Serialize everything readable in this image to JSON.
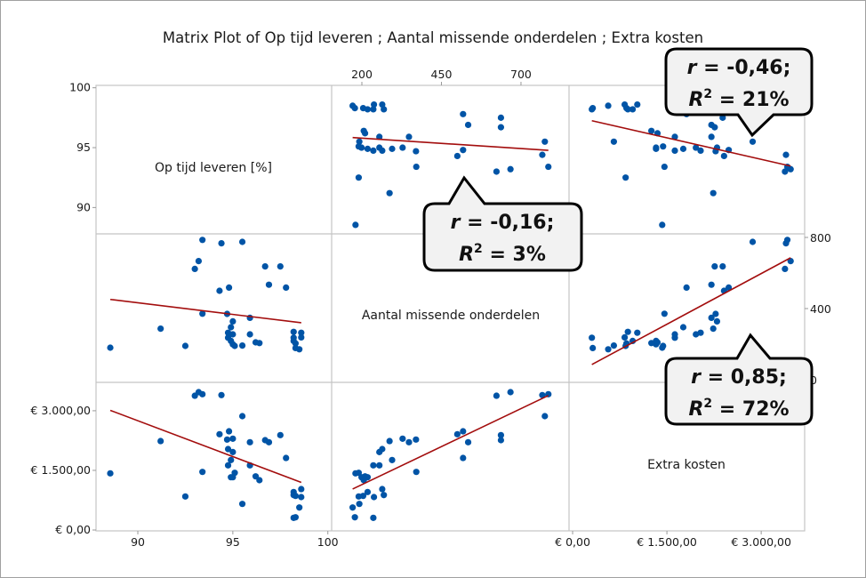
{
  "chart_data": {
    "type": "scatter",
    "subtype": "matrix",
    "title": "Matrix Plot of Op tijd leveren ; Aantal missende onderdelen ; Extra kosten",
    "variables": [
      {
        "key": "tijd",
        "label": "Op tijd leveren [%]",
        "range_horizontal": [
          87.8,
          100.2
        ],
        "range_vertical": [
          87.8,
          100.2
        ],
        "ticks_vertical": [
          {
            "v": 100,
            "label": "100"
          },
          {
            "v": 95,
            "label": "95"
          },
          {
            "v": 90,
            "label": "90"
          }
        ],
        "ticks_horizontal": [
          {
            "v": 90,
            "label": "90"
          },
          {
            "v": 95,
            "label": "95"
          },
          {
            "v": 100,
            "label": "100"
          }
        ]
      },
      {
        "key": "aantal",
        "label": "Aantal missende onderdelen",
        "range_horizontal": [
          105,
          851
        ],
        "range_vertical": [
          -15,
          820
        ],
        "ticks_horizontal": [
          {
            "v": 200,
            "label": "200"
          },
          {
            "v": 450,
            "label": "450"
          },
          {
            "v": 700,
            "label": "700"
          }
        ],
        "ticks_vertical": [
          {
            "v": 800,
            "label": "800"
          },
          {
            "v": 400,
            "label": "400"
          },
          {
            "v": 0,
            "label": "0"
          }
        ]
      },
      {
        "key": "kosten",
        "label": "Extra kosten",
        "range_horizontal": [
          -57,
          3691
        ],
        "range_vertical": [
          -22,
          3714
        ],
        "ticks_vertical": [
          {
            "v": 3000,
            "label": "€ 3.000,00"
          },
          {
            "v": 1500,
            "label": "€ 1.500,00"
          },
          {
            "v": 0,
            "label": "€ 0,00"
          }
        ],
        "ticks_horizontal": [
          {
            "v": 0,
            "label": "€ 0,00"
          },
          {
            "v": 1500,
            "label": "€ 1.500,00"
          },
          {
            "v": 3000,
            "label": "€ 3.000,00"
          }
        ]
      }
    ],
    "points": [
      [
        93.4,
        786,
        3416
      ],
      [
        94.4,
        767,
        3394
      ],
      [
        93.2,
        667,
        3468
      ],
      [
        93.0,
        623,
        3378
      ],
      [
        95.5,
        775,
        2864
      ],
      [
        97.5,
        637,
        2387
      ],
      [
        96.7,
        637,
        2260
      ],
      [
        96.9,
        534,
        2208
      ],
      [
        94.3,
        500,
        2409
      ],
      [
        94.8,
        518,
        2483
      ],
      [
        95.0,
        328,
        2297
      ],
      [
        95.9,
        348,
        2208
      ],
      [
        94.7,
        370,
        2275
      ],
      [
        91.2,
        287,
        2237
      ],
      [
        94.75,
        264,
        2036
      ],
      [
        95.0,
        255,
        1961
      ],
      [
        97.8,
        518,
        1812
      ],
      [
        94.9,
        295,
        1760
      ],
      [
        94.75,
        236,
        1626
      ],
      [
        95.9,
        255,
        1626
      ],
      [
        93.4,
        371,
        1461
      ],
      [
        95.1,
        190,
        1439
      ],
      [
        88.55,
        180,
        1425
      ],
      [
        95.0,
        199,
        1327
      ],
      [
        94.9,
        218,
        1327
      ],
      [
        96.4,
        206,
        1253
      ],
      [
        96.2,
        210,
        1350
      ],
      [
        98.6,
        264,
        1029
      ],
      [
        98.2,
        218,
        955
      ],
      [
        98.2,
        269,
        879
      ],
      [
        98.3,
        204,
        857
      ],
      [
        92.5,
        190,
        843
      ],
      [
        98.6,
        238,
        828
      ],
      [
        95.5,
        192,
        656
      ],
      [
        98.5,
        171,
        566
      ],
      [
        98.3,
        178,
        320
      ],
      [
        98.2,
        236,
        306
      ]
    ],
    "fit_line": "linear",
    "annotations": [
      {
        "pair": "tijd-aantal",
        "r": "r = -0,16;",
        "r2_label": "R",
        "r2_sup": "2",
        "r2_value": " = 3%"
      },
      {
        "pair": "tijd-kosten",
        "r": "r = -0,46;",
        "r2_label": "R",
        "r2_sup": "2",
        "r2_value": " = 21%"
      },
      {
        "pair": "aantal-kosten",
        "r": "r = 0,85;",
        "r2_label": "R",
        "r2_sup": "2",
        "r2_value": " = 72%"
      }
    ],
    "colors": {
      "points": "#0054a6",
      "fit_line": "#a30d0d",
      "grid": "#c4c4c4",
      "callout_fill": "#f2f2f2"
    }
  }
}
